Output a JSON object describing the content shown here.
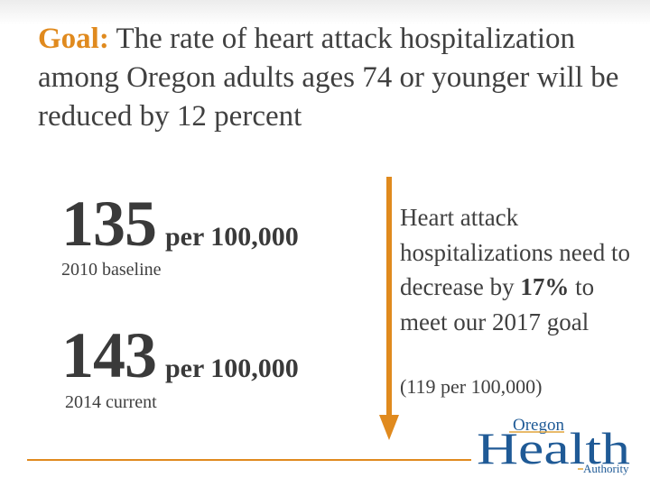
{
  "heading": {
    "goal_label": "Goal:",
    "text": " The rate of heart attack hospitalization among Oregon adults ages 74 or younger will be reduced by 12 percent"
  },
  "stats": [
    {
      "value": "135",
      "unit": "per 100,000",
      "caption": "2010 baseline"
    },
    {
      "value": "143",
      "unit": "per 100,000",
      "caption": "2014 current"
    }
  ],
  "side": {
    "text_before": "Heart attack hospitalizations need to decrease by ",
    "percent": "17%",
    "text_after": " to meet our 2017 goal",
    "note": "(119 per 100,000)"
  },
  "logo": {
    "line1": "Oregon",
    "line2": "Health",
    "line3": "Authority"
  },
  "colors": {
    "accent_orange": "#e08a1e",
    "logo_blue": "#1f5a96",
    "logo_gold": "#e1a43a",
    "text_gray": "#404040"
  }
}
